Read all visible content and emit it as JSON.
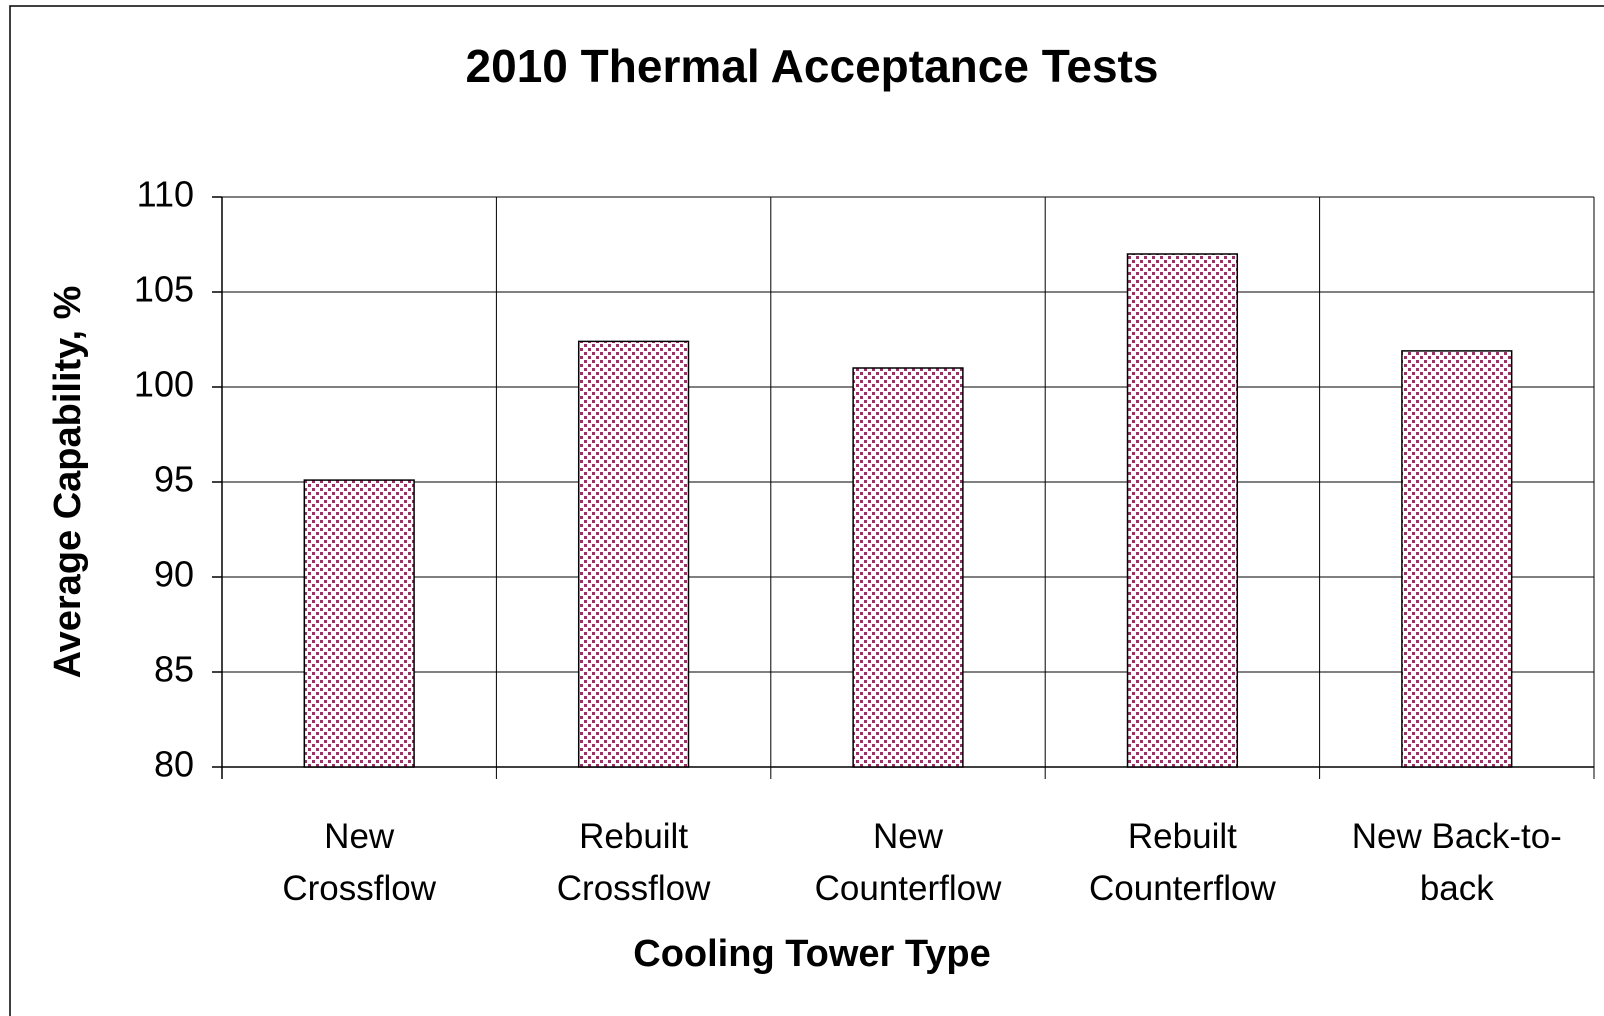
{
  "chart_data": {
    "type": "bar",
    "title": "2010 Thermal Acceptance Tests",
    "x_label": "Cooling Tower Type",
    "y_label": "Average Capability, %",
    "categories": [
      "New\nCrossflow",
      "Rebuilt\nCrossflow",
      "New\nCounterflow",
      "Rebuilt\nCounterflow",
      "New Back-to-\nback"
    ],
    "values": [
      95.1,
      102.4,
      101.0,
      107.0,
      101.9
    ],
    "color": "#993366",
    "ylim": [
      80,
      110
    ],
    "yticks": [
      80,
      85,
      90,
      95,
      100,
      105,
      110
    ],
    "grid": true
  }
}
